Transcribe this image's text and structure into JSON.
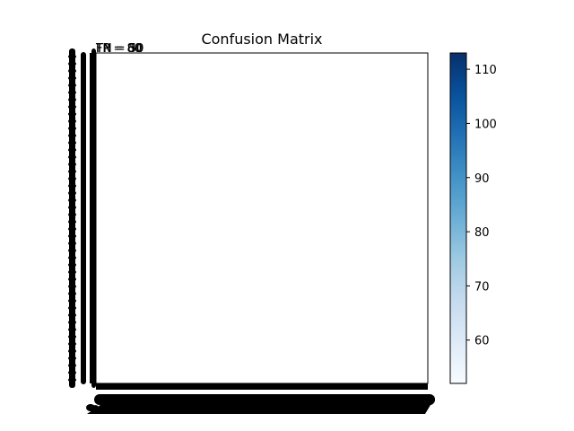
{
  "chart_data": {
    "type": "heatmap",
    "title": "Confusion Matrix",
    "xlabel": "",
    "ylabel": "",
    "cell_annotations": [
      "TN = 50",
      "FP = 80",
      "FN = 30",
      "TP = 60"
    ],
    "colorbar": {
      "colormap": "Blues",
      "range": [
        52,
        113
      ],
      "ticks": [
        60,
        70,
        80,
        90,
        100,
        110
      ],
      "colors": [
        "#f7fbff",
        "#deebf7",
        "#c6dbef",
        "#9ecae1",
        "#6baed6",
        "#4292c6",
        "#2171b5",
        "#08519c",
        "#08306b"
      ]
    },
    "heatmap_cell_color": "#ffffff",
    "tick_label_color": "#000000",
    "grid": false
  }
}
